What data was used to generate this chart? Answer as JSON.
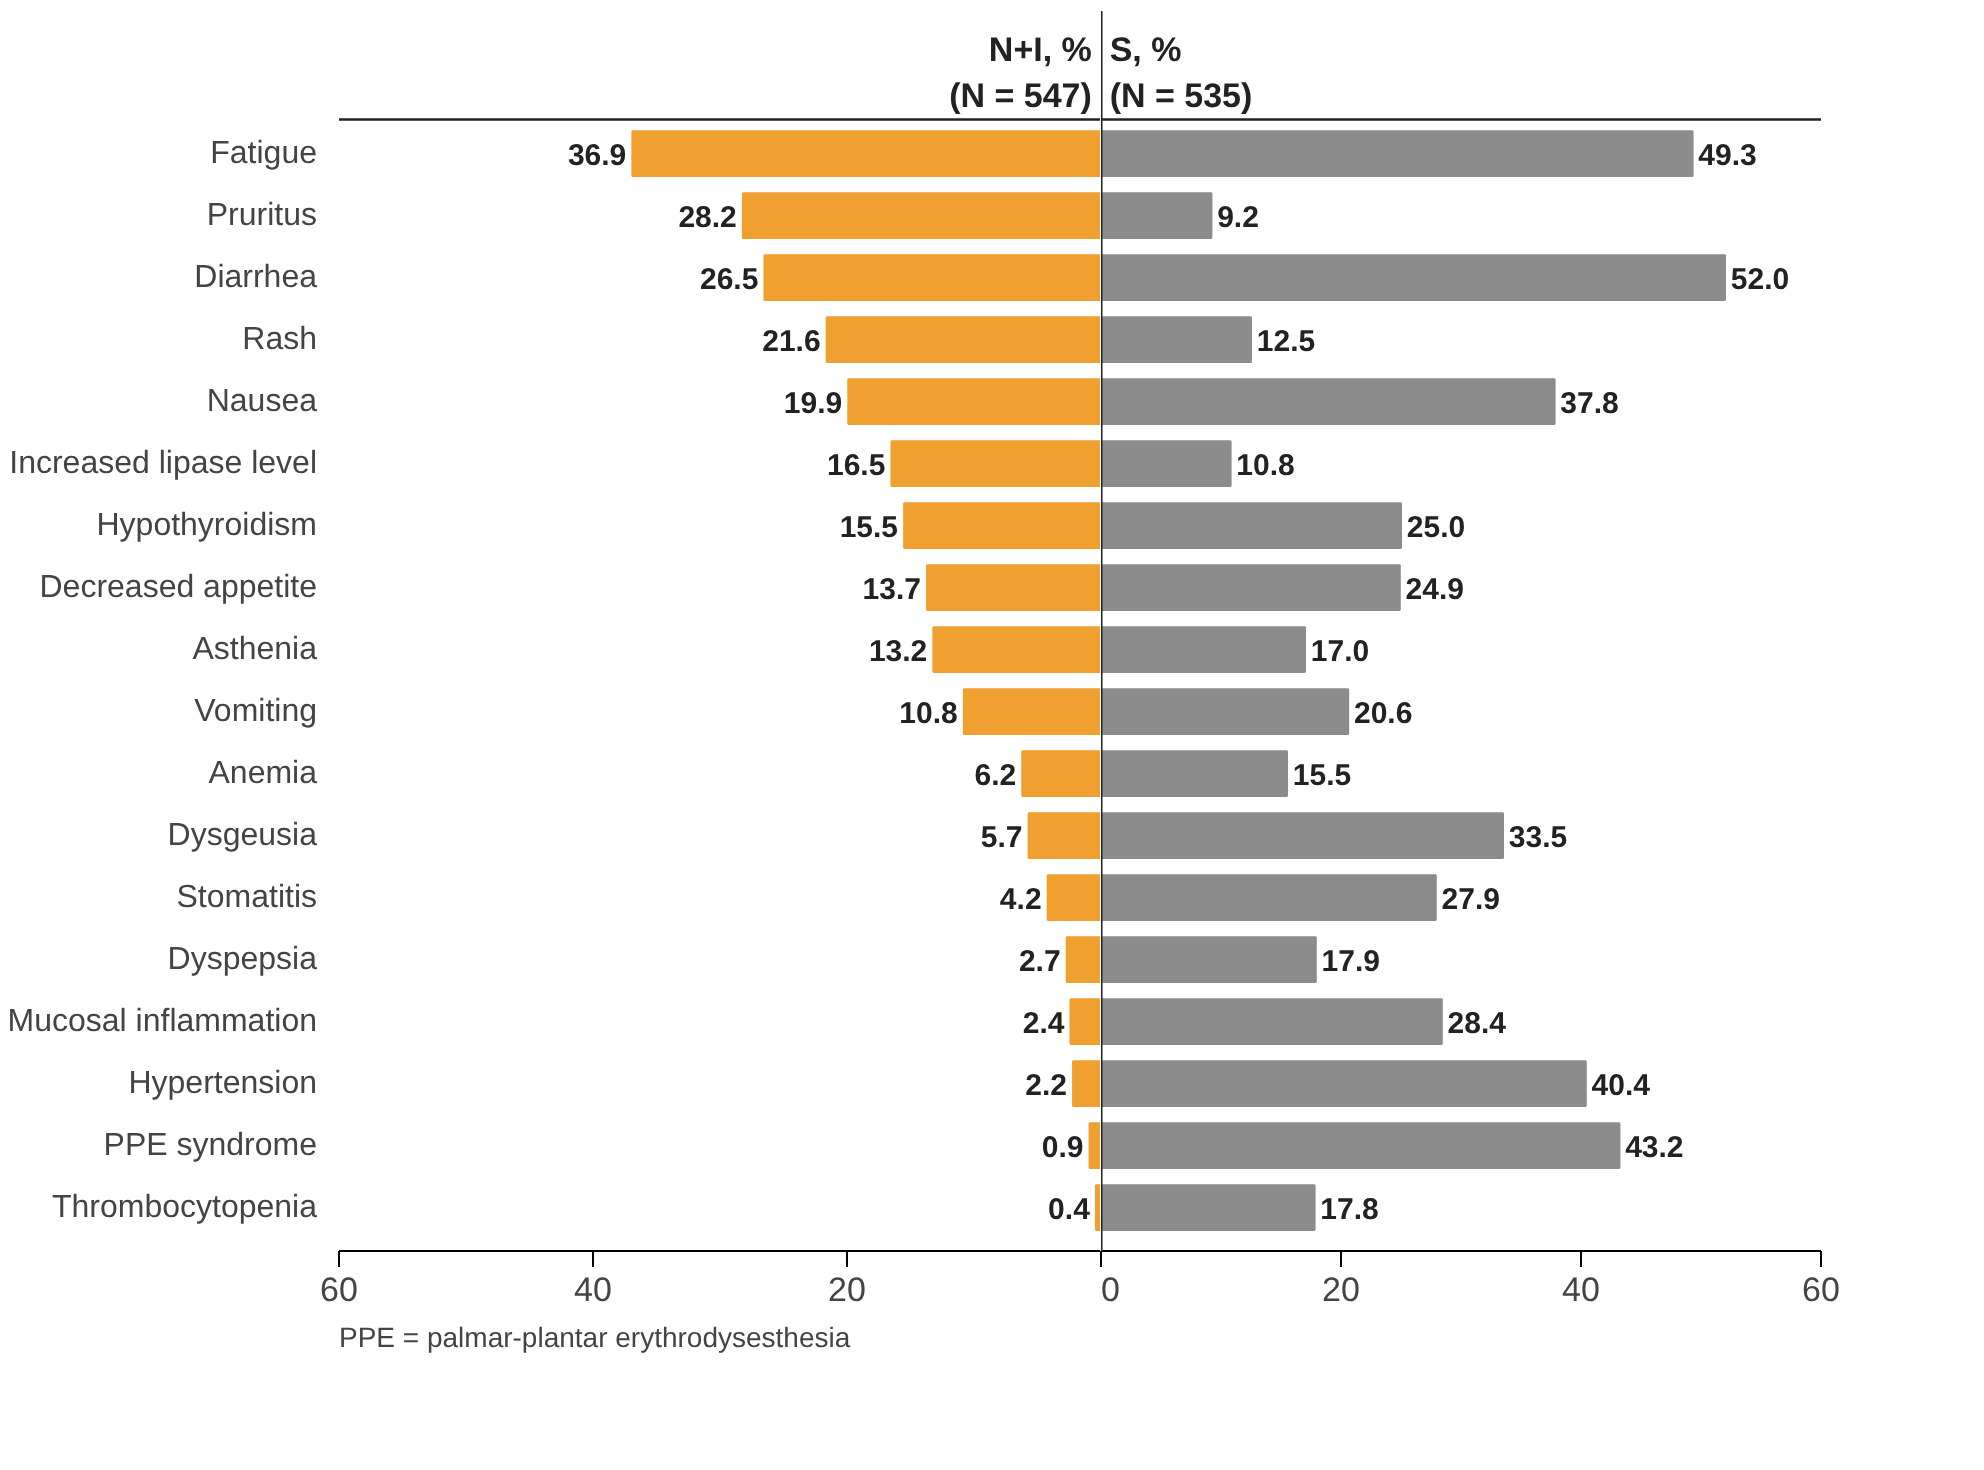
{
  "chart_data": [
    {
      "type": "bar",
      "orientation": "horizontal",
      "categories": [
        "Fatigue",
        "Pruritus",
        "Diarrhea",
        "Rash",
        "Nausea",
        "Increased lipase level",
        "Hypothyroidism",
        "Decreased appetite",
        "Asthenia",
        "Vomiting",
        "Anemia",
        "Dysgeusia",
        "Stomatitis",
        "Dyspepsia",
        "Mucosal inflammation",
        "Hypertension",
        "PPE syndrome",
        "Thrombocytopenia"
      ],
      "series": [
        {
          "name": "N+I, %\n(N = 547)",
          "color": "#f0a030",
          "values": [
            36.9,
            28.2,
            26.5,
            21.6,
            19.9,
            16.5,
            15.5,
            13.7,
            13.2,
            10.8,
            6.2,
            5.7,
            4.2,
            2.7,
            2.4,
            2.2,
            0.9,
            0.4
          ],
          "value_labels": [
            "36.9",
            "28.2",
            "26.5",
            "21.6",
            "19.9",
            "16.5",
            "15.5",
            "13.7",
            "13.2",
            "10.8",
            "6.2",
            "5.7",
            "4.2",
            "2.7",
            "2.4",
            "2.2",
            "0.9",
            "0.4"
          ]
        }
      ],
      "xlim": [
        60,
        0
      ],
      "xticks": [
        60,
        40,
        20,
        {
          "value": 0,
          "label": null
        }
      ],
      "grid": false,
      "annotations": [
        "PPE = palmar-plantar erythrodysesthesia"
      ]
    },
    {
      "type": "bar",
      "orientation": "horizontal",
      "categories": [
        null,
        null,
        null,
        null,
        null,
        null,
        null,
        null,
        null,
        null,
        null,
        null,
        null,
        null,
        null,
        null,
        null,
        null
      ],
      "series": [
        {
          "name": "S, %\n(N = 535)",
          "color": "#8c8c8c",
          "values": [
            49.3,
            9.2,
            52.0,
            12.5,
            37.8,
            10.8,
            25.0,
            24.9,
            17.0,
            20.6,
            15.5,
            33.5,
            27.9,
            17.9,
            28.4,
            40.4,
            43.2,
            17.8
          ],
          "value_labels": [
            "49.3",
            "9.2",
            "52.0",
            "12.5",
            "37.8",
            "10.8",
            "25.0",
            "24.9",
            "17.0",
            "20.6",
            "15.5",
            "33.5",
            "27.9",
            "17.9",
            "28.4",
            "40.4",
            "43.2",
            "17.8"
          ]
        }
      ],
      "xlim": [
        0,
        60
      ],
      "xticks": [
        0,
        20,
        40,
        60
      ],
      "grid": false,
      "tick_labels": "x"
    }
  ]
}
